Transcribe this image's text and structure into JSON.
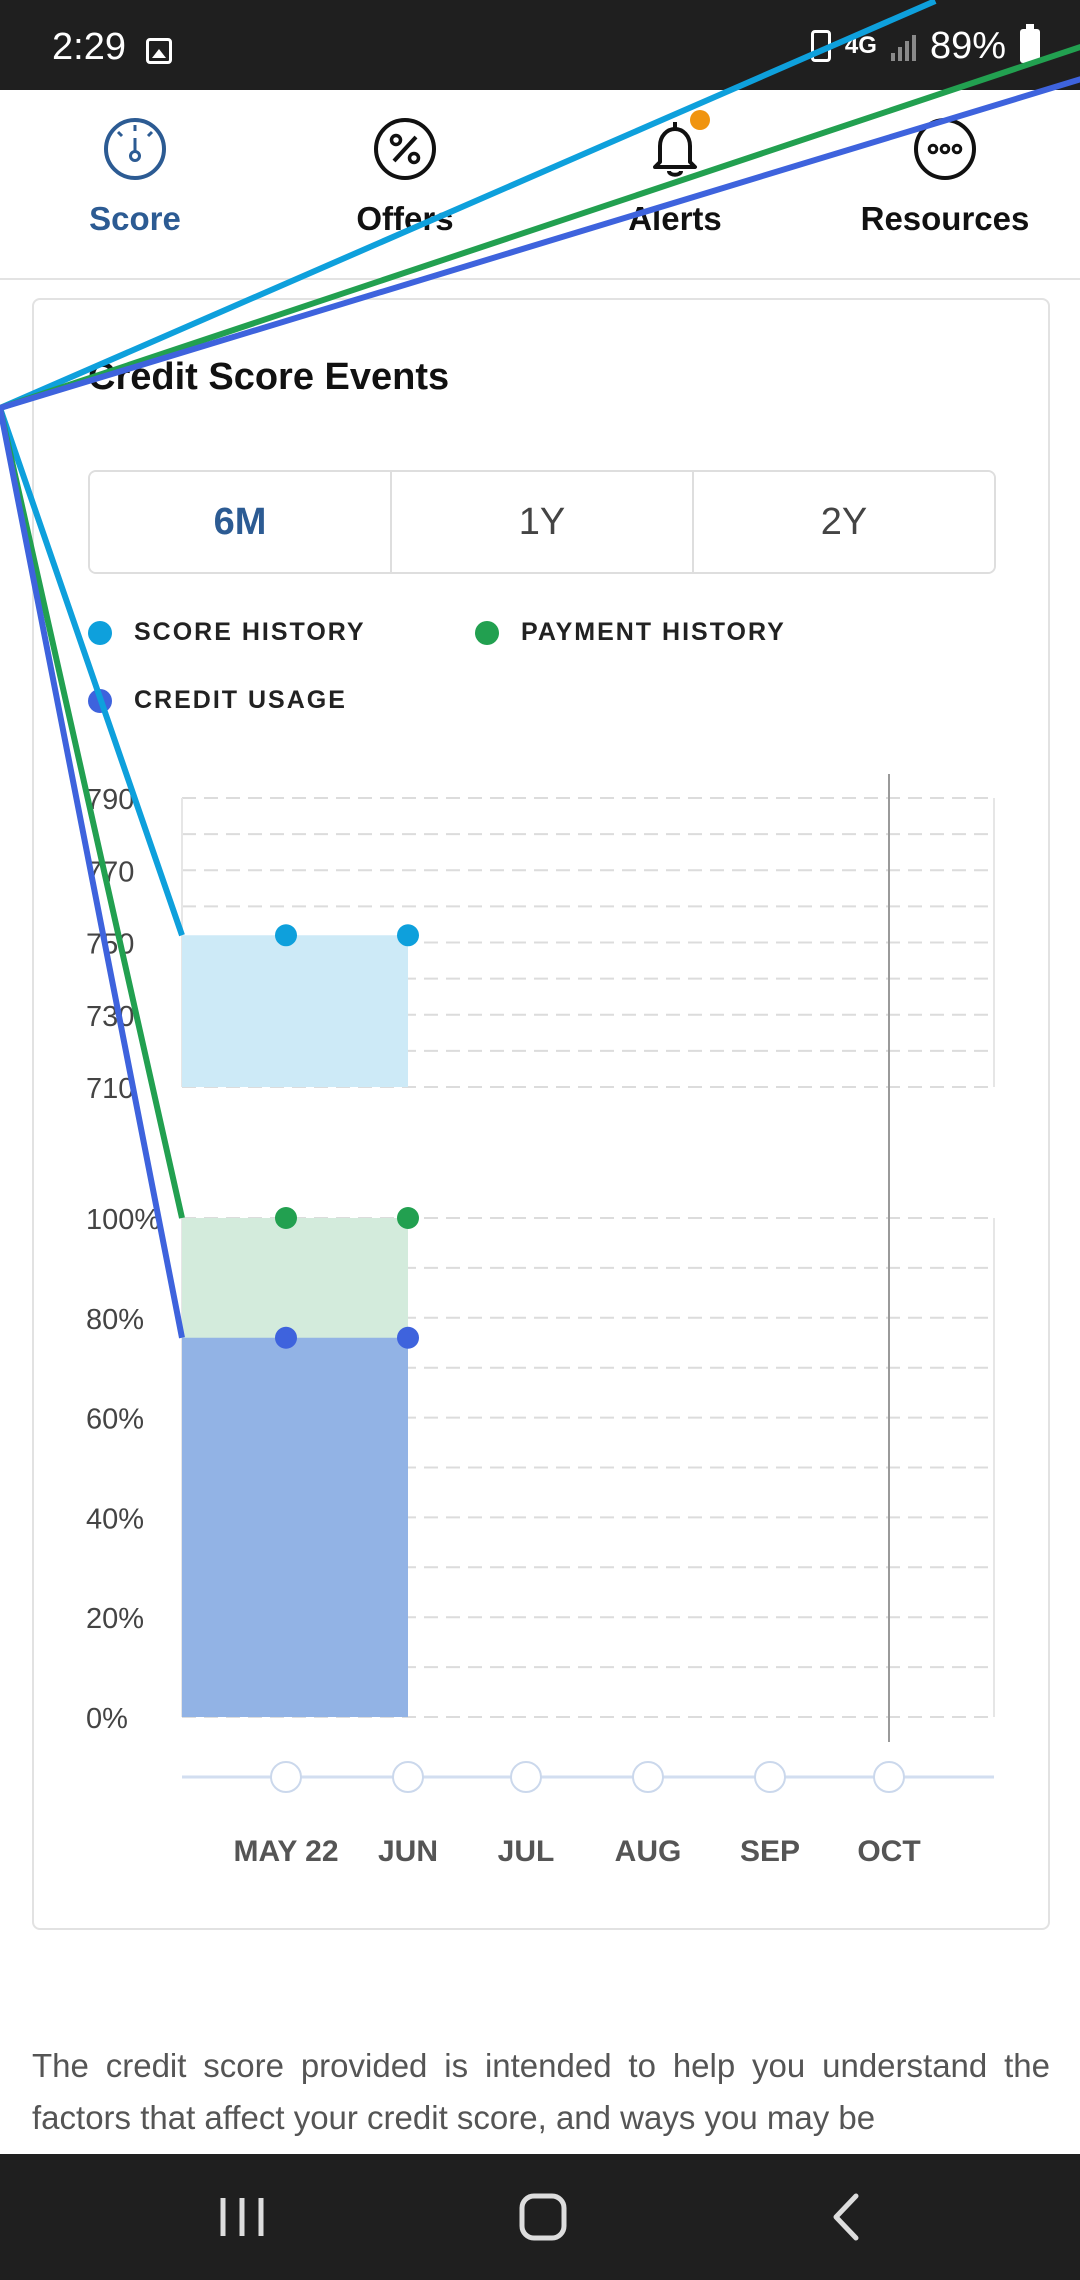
{
  "status_bar": {
    "time": "2:29",
    "network": "4G",
    "battery": "89%"
  },
  "nav": {
    "items": [
      {
        "label": "Score",
        "icon": "speedometer-icon",
        "active": true
      },
      {
        "label": "Offers",
        "icon": "percent-badge-icon",
        "active": false
      },
      {
        "label": "Alerts",
        "icon": "bell-icon",
        "active": false
      },
      {
        "label": "Resources",
        "icon": "more-circle-icon",
        "active": false
      }
    ],
    "active_color": "#2c5b93",
    "alert_dot_color": "#f0940f"
  },
  "card": {
    "title": "Credit Score Events",
    "range_tabs": [
      {
        "label": "6M",
        "active": true
      },
      {
        "label": "1Y",
        "active": false
      },
      {
        "label": "2Y",
        "active": false
      }
    ],
    "legend": [
      {
        "label": "SCORE HISTORY",
        "color": "#0ea0dc"
      },
      {
        "label": "PAYMENT HISTORY",
        "color": "#22a050"
      },
      {
        "label": "CREDIT USAGE",
        "color": "#3e63dd"
      }
    ]
  },
  "chart_data": [
    {
      "type": "line",
      "categories": [
        "MAY 22",
        "JUN",
        "JUL",
        "AUG",
        "SEP",
        "OCT"
      ],
      "series": [
        {
          "name": "SCORE HISTORY",
          "values": [
            752,
            752,
            null,
            null,
            null,
            null
          ],
          "color": "#0ea0dc",
          "fill": "#cdeaf7"
        }
      ],
      "y_ticks": [
        "790",
        "770",
        "750",
        "730",
        "710"
      ],
      "ylim": [
        710,
        790
      ],
      "grid": true,
      "marker_at": "OCT"
    },
    {
      "type": "area",
      "categories": [
        "MAY 22",
        "JUN",
        "JUL",
        "AUG",
        "SEP",
        "OCT"
      ],
      "series": [
        {
          "name": "PAYMENT HISTORY",
          "values": [
            100,
            100,
            null,
            null,
            null,
            null
          ],
          "color": "#22a050",
          "fill": "#d3ebdc"
        },
        {
          "name": "CREDIT USAGE",
          "values": [
            76,
            76,
            null,
            null,
            null,
            null
          ],
          "color": "#3e63dd",
          "fill": "#92b3e5"
        }
      ],
      "y_ticks": [
        "100%",
        "80%",
        "60%",
        "40%",
        "20%",
        "0%"
      ],
      "ylim": [
        0,
        100
      ],
      "grid": true,
      "marker_at": "OCT"
    }
  ],
  "disclaimer": "The credit score provided is intended to help you understand the factors that affect your credit score, and ways you may be"
}
